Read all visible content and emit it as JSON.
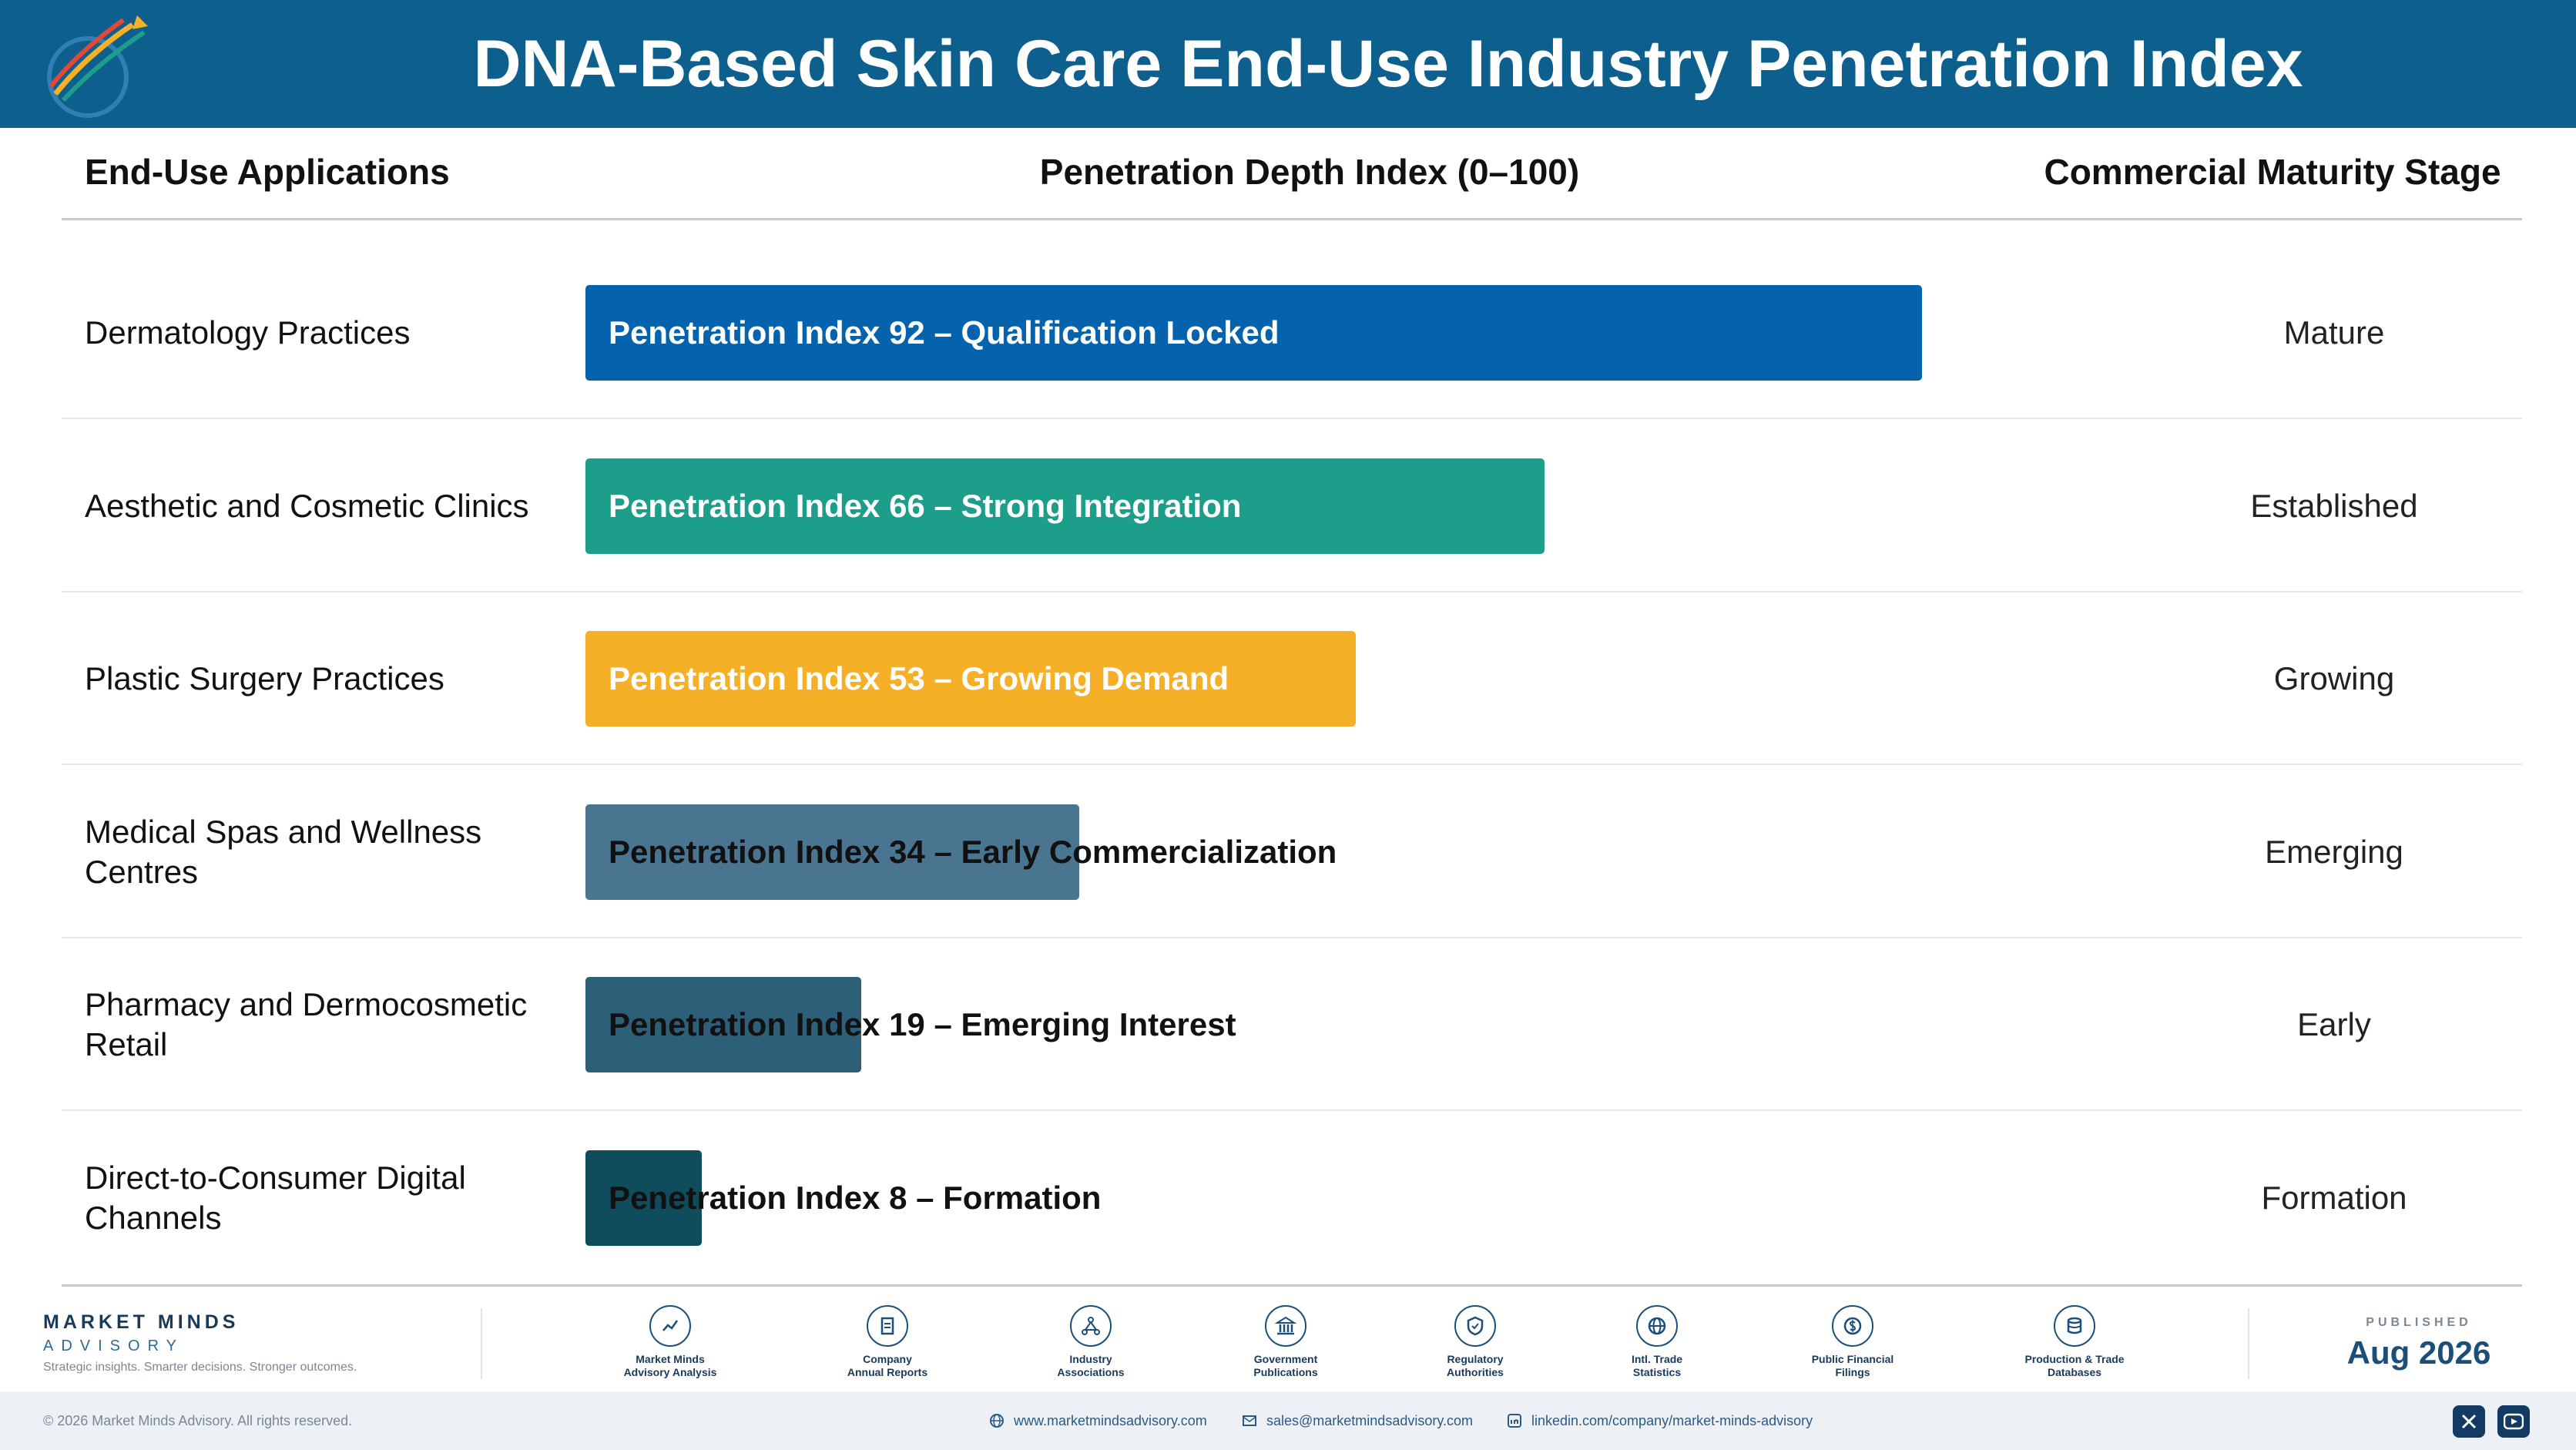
{
  "header": {
    "title": "DNA-Based Skin Care End-Use Industry Penetration Index"
  },
  "columns": {
    "applications": "End-Use Applications",
    "penetration": "Penetration Depth Index (0–100)",
    "stage": "Commercial Maturity Stage"
  },
  "chart_data": {
    "type": "bar",
    "orientation": "horizontal",
    "xlim": [
      0,
      100
    ],
    "categories": [
      "Dermatology Practices",
      "Aesthetic and Cosmetic Clinics",
      "Plastic Surgery Practices",
      "Medical Spas and Wellness Centres",
      "Pharmacy and Dermocosmetic Retail",
      "Direct-to-Consumer Digital Channels"
    ],
    "values": [
      92,
      66,
      53,
      34,
      19,
      8
    ],
    "bar_labels": [
      "Penetration Index 92 – Qualification Locked",
      "Penetration Index 66 – Strong Integration",
      "Penetration Index 53 – Growing Demand",
      "Penetration Index 34 – Early Commercialization",
      "Penetration Index 19 – Emerging Interest",
      "Penetration Index 8 – Formation"
    ],
    "stages": [
      "Mature",
      "Established",
      "Growing",
      "Emerging",
      "Early",
      "Formation"
    ],
    "colors": [
      "#0563ad",
      "#1d9e8a",
      "#f5b027",
      "#4a7590",
      "#2e5f78",
      "#0f4c5c"
    ]
  },
  "footer": {
    "brand_name": "MARKET MINDS",
    "brand_sub": "ADVISORY",
    "brand_tagline": "Strategic insights. Smarter decisions. Stronger outcomes.",
    "sources": [
      {
        "icon": "chart-icon",
        "label": "Market Minds\nAdvisory Analysis"
      },
      {
        "icon": "document-icon",
        "label": "Company\nAnnual Reports"
      },
      {
        "icon": "network-icon",
        "label": "Industry\nAssociations"
      },
      {
        "icon": "building-icon",
        "label": "Government\nPublications"
      },
      {
        "icon": "shield-icon",
        "label": "Regulatory\nAuthorities"
      },
      {
        "icon": "globe-icon",
        "label": "Intl. Trade\nStatistics"
      },
      {
        "icon": "dollar-icon",
        "label": "Public Financial\nFilings"
      },
      {
        "icon": "database-icon",
        "label": "Production & Trade\nDatabases"
      }
    ],
    "published_label": "PUBLISHED",
    "published_date": "Aug 2026",
    "copyright": "© 2026 Market Minds Advisory. All rights reserved.",
    "website": "www.marketmindsadvisory.com",
    "email": "sales@marketmindsadvisory.com",
    "linkedin": "linkedin.com/company/market-minds-advisory"
  }
}
